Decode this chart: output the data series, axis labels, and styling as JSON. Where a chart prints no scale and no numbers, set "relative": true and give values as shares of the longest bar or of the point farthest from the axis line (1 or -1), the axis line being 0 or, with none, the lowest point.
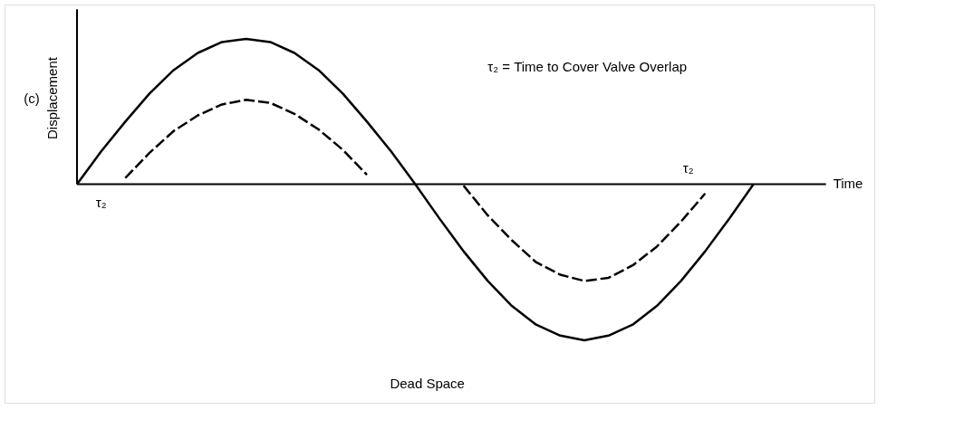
{
  "chart_data": {
    "type": "line",
    "relative": true,
    "xlabel": "Time",
    "ylabel": "Displacement",
    "categories": [
      null,
      null,
      null,
      null,
      null,
      null,
      null,
      null,
      null,
      null,
      null,
      null,
      null,
      null,
      null,
      null,
      null,
      null,
      null,
      null,
      null,
      null,
      null,
      null,
      null,
      null,
      null,
      null,
      null
    ],
    "series": [
      {
        "color": "#000000",
        "line_style": "solid",
        "values": [
          0,
          0.21,
          0.4,
          0.58,
          0.73,
          0.84,
          0.91,
          0.93,
          0.91,
          0.84,
          0.73,
          0.58,
          0.4,
          0.21,
          0,
          -0.22,
          -0.43,
          -0.62,
          -0.78,
          -0.9,
          -0.97,
          -1,
          -0.97,
          -0.9,
          -0.78,
          -0.62,
          -0.43,
          -0.22,
          0
        ]
      },
      {
        "color": "#000000",
        "line_style": "dashed",
        "values": [
          null,
          null,
          0.04,
          0.2,
          0.34,
          0.44,
          0.51,
          0.54,
          0.52,
          0.45,
          0.35,
          0.22,
          0.06,
          null,
          null,
          null,
          -0.01,
          -0.2,
          -0.36,
          -0.5,
          -0.58,
          -0.62,
          -0.6,
          -0.52,
          -0.4,
          -0.24,
          -0.06,
          null,
          null
        ]
      }
    ],
    "annotations": [
      "(c)",
      "τ₂ = Time to Cover Valve Overlap",
      "τ₂",
      "τ₂",
      "Dead Space"
    ]
  }
}
